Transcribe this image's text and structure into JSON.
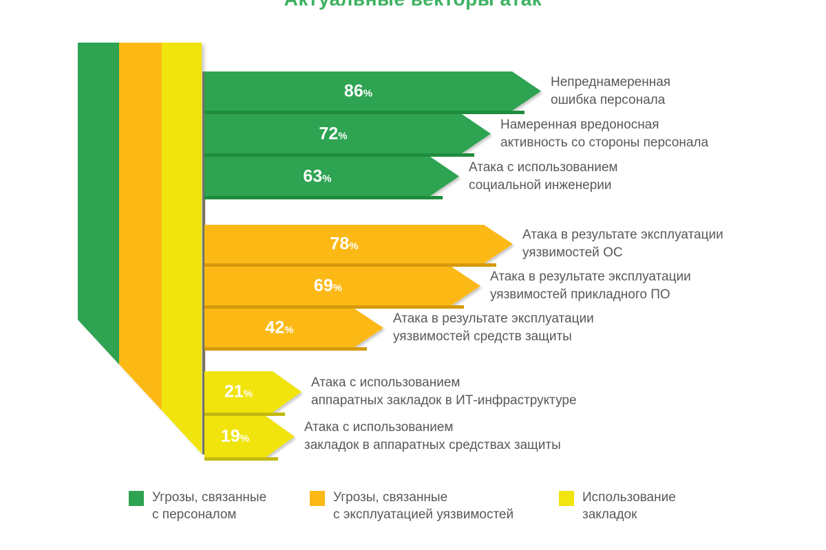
{
  "title": "Актуальные векторы атак",
  "colors": {
    "title_green": "#3db261",
    "label_gray": "#57585b",
    "background": "#ffffff"
  },
  "chart_data": {
    "type": "bar",
    "orientation": "horizontal",
    "unit": "%",
    "title": "Актуальные векторы атак",
    "legend_position": "bottom",
    "groups": [
      {
        "name": "Угрозы, связанные с персоналом",
        "color": "#2ea351",
        "separator_color": "#1f8c3d",
        "bars": [
          {
            "value": 86,
            "label_lines": [
              "Непреднамеренная",
              "ошибка персонала"
            ]
          },
          {
            "value": 72,
            "label_lines": [
              "Намеренная вредоносная",
              "активность со стороны персонала"
            ]
          },
          {
            "value": 63,
            "label_lines": [
              "Атака с использованием",
              "социальной инженерии"
            ]
          }
        ]
      },
      {
        "name": "Угрозы, связанные с эксплуатацией уязвимостей",
        "color": "#fcb916",
        "separator_color": "#d59a0a",
        "bars": [
          {
            "value": 78,
            "label_lines": [
              "Атака в результате эксплуатации",
              "уязвимостей ОС"
            ]
          },
          {
            "value": 69,
            "label_lines": [
              "Атака в результате эксплуатации",
              "уязвимостей прикладного ПО"
            ]
          },
          {
            "value": 42,
            "label_lines": [
              "Атака в результате эксплуатации",
              "уязвимостей средств защиты"
            ]
          }
        ]
      },
      {
        "name": "Использование закладок",
        "color": "#f1e40f",
        "separator_color": "#c3ba10",
        "bars": [
          {
            "value": 21,
            "label_lines": [
              "Атака с использованием",
              "аппаратных закладок в ИТ-инфраструктуре"
            ]
          },
          {
            "value": 19,
            "label_lines": [
              "Атака с использованием",
              "закладок в аппаратных средствах защиты"
            ]
          }
        ]
      }
    ],
    "legend": [
      {
        "color": "#2ea351",
        "label_lines": [
          "Угрозы, связанные",
          "с персоналом"
        ]
      },
      {
        "color": "#fcb916",
        "label_lines": [
          "Угрозы, связанные",
          "с эксплуатацией уязвимостей"
        ]
      },
      {
        "color": "#f1e40f",
        "label_lines": [
          "Использование",
          "закладок"
        ]
      }
    ]
  }
}
